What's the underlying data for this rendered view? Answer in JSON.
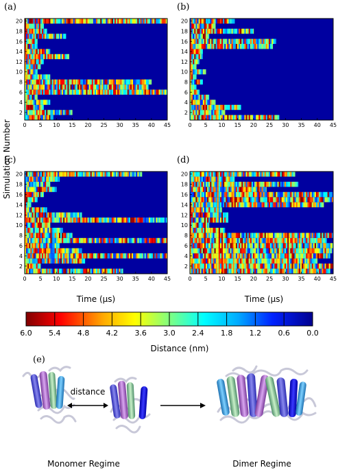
{
  "figure": {
    "y_axis_label": "Simulation Number",
    "x_axis_label": "Time (µs)",
    "colorbar_label": "Distance (nm)",
    "colorbar_ticks": [
      "6.0",
      "5.4",
      "4.8",
      "4.2",
      "3.6",
      "3.0",
      "2.4",
      "1.8",
      "1.2",
      "0.6",
      "0.0"
    ],
    "panel_e": {
      "label": "(e)",
      "distance_label": "distance",
      "monomer_label": "Monomer Regime",
      "dimer_label": "Dimer Regime"
    }
  },
  "chart_data": [
    {
      "type": "heatmap",
      "panel": "(a)",
      "x_ticks": [
        0,
        5,
        10,
        15,
        20,
        25,
        30,
        35,
        40,
        45
      ],
      "y_ticks": [
        2,
        4,
        6,
        8,
        10,
        12,
        14,
        16,
        18,
        20
      ],
      "xlim": [
        0,
        45
      ],
      "ylim": [
        0.5,
        20.5
      ],
      "colorscale_range_nm": [
        0.0,
        6.0
      ],
      "rows": [
        {
          "sim": 1,
          "end": 9
        },
        {
          "sim": 2,
          "end": 15
        },
        {
          "sim": 3,
          "end": 6
        },
        {
          "sim": 4,
          "end": 8
        },
        {
          "sim": 5,
          "end": 4
        },
        {
          "sim": 6,
          "end": 45
        },
        {
          "sim": 7,
          "end": 39
        },
        {
          "sim": 8,
          "end": 40
        },
        {
          "sim": 9,
          "end": 8
        },
        {
          "sim": 10,
          "end": 4
        },
        {
          "sim": 11,
          "end": 5
        },
        {
          "sim": 12,
          "end": 6
        },
        {
          "sim": 13,
          "end": 14
        },
        {
          "sim": 14,
          "end": 8
        },
        {
          "sim": 15,
          "end": 4
        },
        {
          "sim": 16,
          "end": 4
        },
        {
          "sim": 17,
          "end": 13
        },
        {
          "sim": 18,
          "end": 7
        },
        {
          "sim": 19,
          "end": 6
        },
        {
          "sim": 20,
          "end": 45
        }
      ]
    },
    {
      "type": "heatmap",
      "panel": "(b)",
      "x_ticks": [
        0,
        5,
        10,
        15,
        20,
        25,
        30,
        35,
        40,
        45
      ],
      "y_ticks": [
        2,
        4,
        6,
        8,
        10,
        12,
        14,
        16,
        18,
        20
      ],
      "xlim": [
        0,
        45
      ],
      "ylim": [
        0.5,
        20.5
      ],
      "colorscale_range_nm": [
        0.0,
        6.0
      ],
      "rows": [
        {
          "sim": 1,
          "end": 28
        },
        {
          "sim": 2,
          "end": 11
        },
        {
          "sim": 3,
          "end": 16
        },
        {
          "sim": 4,
          "end": 8
        },
        {
          "sim": 5,
          "end": 6
        },
        {
          "sim": 6,
          "end": 3
        },
        {
          "sim": 7,
          "end": 2
        },
        {
          "sim": 8,
          "end": 4
        },
        {
          "sim": 9,
          "end": 2
        },
        {
          "sim": 10,
          "end": 5
        },
        {
          "sim": 11,
          "end": 2
        },
        {
          "sim": 12,
          "end": 3
        },
        {
          "sim": 13,
          "end": 4
        },
        {
          "sim": 14,
          "end": 4
        },
        {
          "sim": 15,
          "end": 26
        },
        {
          "sim": 16,
          "end": 27
        },
        {
          "sim": 17,
          "end": 6
        },
        {
          "sim": 18,
          "end": 20
        },
        {
          "sim": 19,
          "end": 8
        },
        {
          "sim": 20,
          "end": 14
        }
      ]
    },
    {
      "type": "heatmap",
      "panel": "(c)",
      "x_ticks": [
        0,
        5,
        10,
        15,
        20,
        25,
        30,
        35,
        40,
        45
      ],
      "y_ticks": [
        2,
        4,
        6,
        8,
        10,
        12,
        14,
        16,
        18,
        20
      ],
      "xlim": [
        0,
        45
      ],
      "ylim": [
        0.5,
        20.5
      ],
      "colorscale_range_nm": [
        0.0,
        6.0
      ],
      "rows": [
        {
          "sim": 1,
          "end": 31
        },
        {
          "sim": 2,
          "end": 5
        },
        {
          "sim": 3,
          "end": 19
        },
        {
          "sim": 4,
          "end": 45
        },
        {
          "sim": 5,
          "end": 18
        },
        {
          "sim": 6,
          "end": 11
        },
        {
          "sim": 7,
          "end": 45
        },
        {
          "sim": 8,
          "end": 15
        },
        {
          "sim": 9,
          "end": 12
        },
        {
          "sim": 10,
          "end": 8
        },
        {
          "sim": 11,
          "end": 45
        },
        {
          "sim": 12,
          "end": 18
        },
        {
          "sim": 13,
          "end": 7
        },
        {
          "sim": 14,
          "end": 2
        },
        {
          "sim": 15,
          "end": 4
        },
        {
          "sim": 16,
          "end": 6
        },
        {
          "sim": 17,
          "end": 10
        },
        {
          "sim": 18,
          "end": 8
        },
        {
          "sim": 19,
          "end": 11
        },
        {
          "sim": 20,
          "end": 37
        }
      ]
    },
    {
      "type": "heatmap",
      "panel": "(d)",
      "x_ticks": [
        0,
        5,
        10,
        15,
        20,
        25,
        30,
        35,
        40,
        45
      ],
      "y_ticks": [
        2,
        4,
        6,
        8,
        10,
        12,
        14,
        16,
        18,
        20
      ],
      "xlim": [
        0,
        45
      ],
      "ylim": [
        0.5,
        20.5
      ],
      "colorscale_range_nm": [
        0.0,
        6.0
      ],
      "rows": [
        {
          "sim": 1,
          "end": 44
        },
        {
          "sim": 2,
          "end": 45
        },
        {
          "sim": 3,
          "end": 40
        },
        {
          "sim": 4,
          "end": 44
        },
        {
          "sim": 5,
          "end": 45
        },
        {
          "sim": 6,
          "end": 45
        },
        {
          "sim": 7,
          "end": 43
        },
        {
          "sim": 8,
          "end": 45
        },
        {
          "sim": 9,
          "end": 11
        },
        {
          "sim": 10,
          "end": 6
        },
        {
          "sim": 11,
          "end": 12
        },
        {
          "sim": 12,
          "end": 12
        },
        {
          "sim": 13,
          "end": 10
        },
        {
          "sim": 14,
          "end": 42
        },
        {
          "sim": 15,
          "end": 45
        },
        {
          "sim": 16,
          "end": 45
        },
        {
          "sim": 17,
          "end": 24
        },
        {
          "sim": 18,
          "end": 34
        },
        {
          "sim": 19,
          "end": 14
        },
        {
          "sim": 20,
          "end": 33
        }
      ]
    }
  ]
}
